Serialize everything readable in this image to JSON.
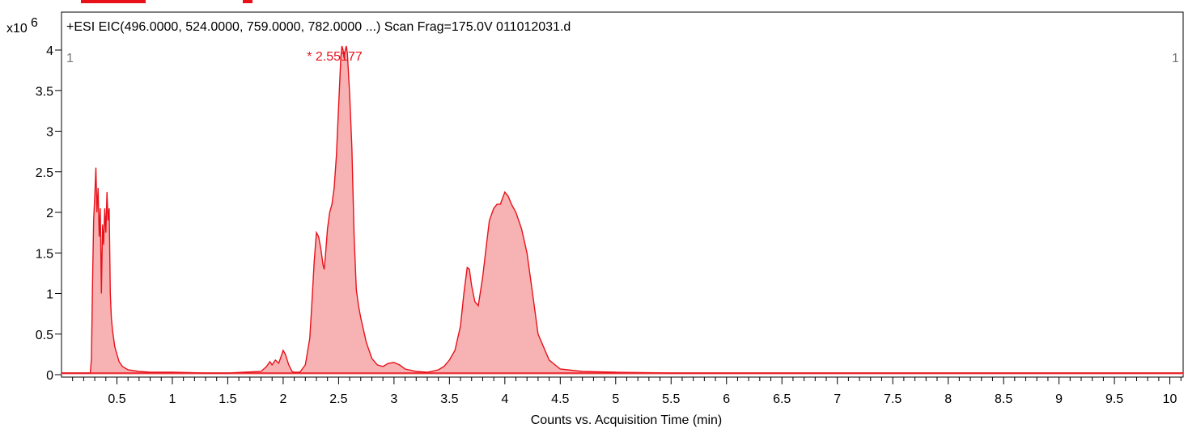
{
  "chart_data": {
    "type": "area",
    "title": "+ESI EIC(496.0000, 524.0000, 759.0000, 782.0000 ...) Scan Frag=175.0V 011012031.d",
    "xlabel": "Counts vs. Acquisition Time (min)",
    "y_multiplier": "x10",
    "y_exponent": "6",
    "xlim": [
      0.0,
      10.12
    ],
    "ylim": [
      0,
      4
    ],
    "x_ticks": [
      0.5,
      1,
      1.5,
      2,
      2.5,
      3,
      3.5,
      4,
      4.5,
      5,
      5.5,
      6,
      6.5,
      7,
      7.5,
      8,
      8.5,
      9,
      9.5,
      10
    ],
    "x_tick_labels": [
      "0.5",
      "1",
      "1.5",
      "2",
      "2.5",
      "3",
      "3.5",
      "4",
      "4.5",
      "5",
      "5.5",
      "6",
      "6.5",
      "7",
      "7.5",
      "8",
      "8.5",
      "9",
      "9.5",
      "10"
    ],
    "y_ticks": [
      0,
      0.5,
      1,
      1.5,
      2,
      2.5,
      3,
      3.5,
      4
    ],
    "y_tick_labels": [
      "0",
      "0.5",
      "1",
      "1.5",
      "2",
      "2.5",
      "3",
      "3.5",
      "4"
    ],
    "grid": false,
    "series_color": "#e8111a",
    "fill_color": "#f7b3b3",
    "corner_label_left": "1",
    "corner_label_right": "1",
    "peak_label": "* 2.55177",
    "peak_x": 2.55,
    "series": [
      {
        "x": [
          0.0,
          0.26,
          0.27,
          0.28,
          0.29,
          0.3,
          0.31,
          0.32,
          0.33,
          0.34,
          0.35,
          0.36,
          0.37,
          0.38,
          0.39,
          0.4,
          0.41,
          0.42,
          0.43,
          0.44,
          0.45,
          0.46,
          0.47,
          0.48,
          0.5,
          0.52,
          0.55,
          0.6,
          0.7,
          0.8,
          1.0,
          1.3,
          1.5,
          1.8,
          1.85,
          1.88,
          1.9,
          1.93,
          1.96,
          1.98,
          2.0,
          2.02,
          2.05,
          2.08,
          2.1,
          2.15,
          2.2,
          2.24,
          2.26,
          2.28,
          2.3,
          2.32,
          2.34,
          2.36,
          2.37,
          2.38,
          2.4,
          2.42,
          2.44,
          2.46,
          2.48,
          2.5,
          2.52,
          2.53,
          2.54,
          2.55,
          2.56,
          2.57,
          2.58,
          2.59,
          2.6,
          2.62,
          2.64,
          2.66,
          2.68,
          2.7,
          2.75,
          2.8,
          2.85,
          2.9,
          2.95,
          3.0,
          3.05,
          3.1,
          3.2,
          3.3,
          3.4,
          3.45,
          3.5,
          3.55,
          3.6,
          3.63,
          3.66,
          3.68,
          3.7,
          3.73,
          3.76,
          3.8,
          3.83,
          3.86,
          3.9,
          3.93,
          3.96,
          4.0,
          4.03,
          4.06,
          4.1,
          4.15,
          4.2,
          4.25,
          4.3,
          4.4,
          4.5,
          4.7,
          5.0,
          5.5,
          5.8,
          6.0,
          7.0,
          8.0,
          9.0,
          10.0,
          10.12
        ],
        "y": [
          0.02,
          0.02,
          0.2,
          1.1,
          1.9,
          2.2,
          2.55,
          2.0,
          2.3,
          1.7,
          2.05,
          1.0,
          1.85,
          1.6,
          2.05,
          1.75,
          2.25,
          1.9,
          2.05,
          1.0,
          0.7,
          0.55,
          0.45,
          0.35,
          0.25,
          0.16,
          0.1,
          0.06,
          0.04,
          0.03,
          0.03,
          0.02,
          0.02,
          0.04,
          0.1,
          0.16,
          0.12,
          0.18,
          0.14,
          0.22,
          0.3,
          0.25,
          0.12,
          0.04,
          0.03,
          0.03,
          0.12,
          0.45,
          0.9,
          1.4,
          1.75,
          1.7,
          1.55,
          1.35,
          1.3,
          1.45,
          1.8,
          2.0,
          2.1,
          2.3,
          2.7,
          3.3,
          3.9,
          4.05,
          4.0,
          3.9,
          4.0,
          4.05,
          3.95,
          3.7,
          3.45,
          2.8,
          1.7,
          1.05,
          0.85,
          0.7,
          0.4,
          0.2,
          0.12,
          0.1,
          0.14,
          0.15,
          0.12,
          0.07,
          0.04,
          0.03,
          0.06,
          0.1,
          0.18,
          0.3,
          0.6,
          1.0,
          1.32,
          1.3,
          1.1,
          0.9,
          0.85,
          1.2,
          1.55,
          1.9,
          2.05,
          2.1,
          2.1,
          2.25,
          2.2,
          2.1,
          2.0,
          1.8,
          1.5,
          1.0,
          0.5,
          0.18,
          0.07,
          0.04,
          0.03,
          0.02,
          0.02,
          0.02,
          0.02,
          0.02,
          0.02,
          0.02,
          0.02
        ]
      }
    ]
  }
}
